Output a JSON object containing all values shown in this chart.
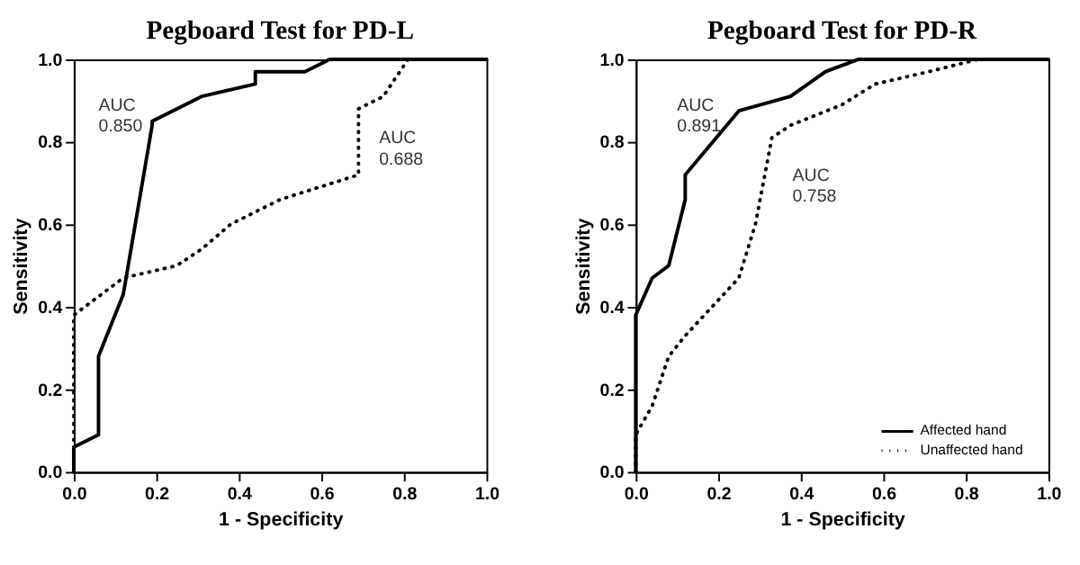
{
  "chart_data": [
    {
      "type": "line",
      "title": "Pegboard Test for PD-L",
      "xlabel": "1 - Specificity",
      "ylabel": "Sensitivity",
      "xlim": [
        0,
        1
      ],
      "ylim": [
        0,
        1
      ],
      "xticks": [
        {
          "value": 0,
          "label": "0.0"
        },
        {
          "value": 0.2,
          "label": "0.2"
        },
        {
          "value": 0.4,
          "label": "0.4"
        },
        {
          "value": 0.6,
          "label": "0.6"
        },
        {
          "value": 0.8,
          "label": "0.8"
        },
        {
          "value": 1,
          "label": "1.0"
        }
      ],
      "yticks": [
        {
          "value": 0,
          "label": "0.0"
        },
        {
          "value": 0.2,
          "label": "0.2"
        },
        {
          "value": 0.4,
          "label": "0.4"
        },
        {
          "value": 0.6,
          "label": "0.6"
        },
        {
          "value": 0.8,
          "label": "0.8"
        },
        {
          "value": 1,
          "label": "1.0"
        }
      ],
      "grid": false,
      "marker": "none",
      "series": [
        {
          "color": "#000000",
          "line_style": "solid",
          "x": [
            0,
            0,
            0.06,
            0.06,
            0.12,
            0.19,
            0.19,
            0.31,
            0.44,
            0.44,
            0.56,
            0.62,
            1
          ],
          "values": [
            0,
            0.06,
            0.09,
            0.28,
            0.43,
            0.84,
            0.85,
            0.91,
            0.94,
            0.97,
            0.97,
            1,
            1
          ]
        },
        {
          "color": "#000000",
          "line_style": "dotted",
          "x": [
            0,
            0,
            0.12,
            0.25,
            0.31,
            0.38,
            0.5,
            0.69,
            0.69,
            0.75,
            0.81,
            1
          ],
          "values": [
            0,
            0.38,
            0.47,
            0.5,
            0.54,
            0.6,
            0.66,
            0.72,
            0.88,
            0.91,
            1,
            1
          ]
        }
      ],
      "annotations": [
        "AUC\n0.850",
        "AUC\n0.688"
      ]
    },
    {
      "type": "line",
      "title": "Pegboard Test for PD-R",
      "xlabel": "1 - Specificity",
      "ylabel": "Sensitivity",
      "xlim": [
        0,
        1
      ],
      "ylim": [
        0,
        1
      ],
      "xticks": [
        {
          "value": 0,
          "label": "0.0"
        },
        {
          "value": 0.2,
          "label": "0.2"
        },
        {
          "value": 0.4,
          "label": "0.4"
        },
        {
          "value": 0.6,
          "label": "0.6"
        },
        {
          "value": 0.8,
          "label": "0.8"
        },
        {
          "value": 1,
          "label": "1.0"
        }
      ],
      "yticks": [
        {
          "value": 0,
          "label": "0.0"
        },
        {
          "value": 0.2,
          "label": "0.2"
        },
        {
          "value": 0.4,
          "label": "0.4"
        },
        {
          "value": 0.6,
          "label": "0.6"
        },
        {
          "value": 0.8,
          "label": "0.8"
        },
        {
          "value": 1,
          "label": "1.0"
        }
      ],
      "grid": false,
      "legend": "bottom right",
      "marker": "none",
      "series": [
        {
          "name": "Affected hand",
          "color": "#000000",
          "line_style": "solid",
          "x": [
            0,
            0,
            0.04,
            0.08,
            0.12,
            0.12,
            0.25,
            0.375,
            0.46,
            0.54,
            1
          ],
          "values": [
            0,
            0.38,
            0.47,
            0.5,
            0.66,
            0.72,
            0.875,
            0.91,
            0.97,
            1,
            1
          ]
        },
        {
          "name": "Unaffected hand",
          "color": "#000000",
          "line_style": "dotted",
          "x": [
            0,
            0,
            0.04,
            0.08,
            0.12,
            0.25,
            0.29,
            0.33,
            0.375,
            0.5,
            0.58,
            0.71,
            0.83,
            1
          ],
          "values": [
            0,
            0.09,
            0.16,
            0.28,
            0.33,
            0.47,
            0.6,
            0.81,
            0.84,
            0.89,
            0.94,
            0.97,
            1,
            1
          ]
        }
      ],
      "annotations": [
        "AUC\n0.891",
        "AUC\n0.758"
      ]
    }
  ]
}
